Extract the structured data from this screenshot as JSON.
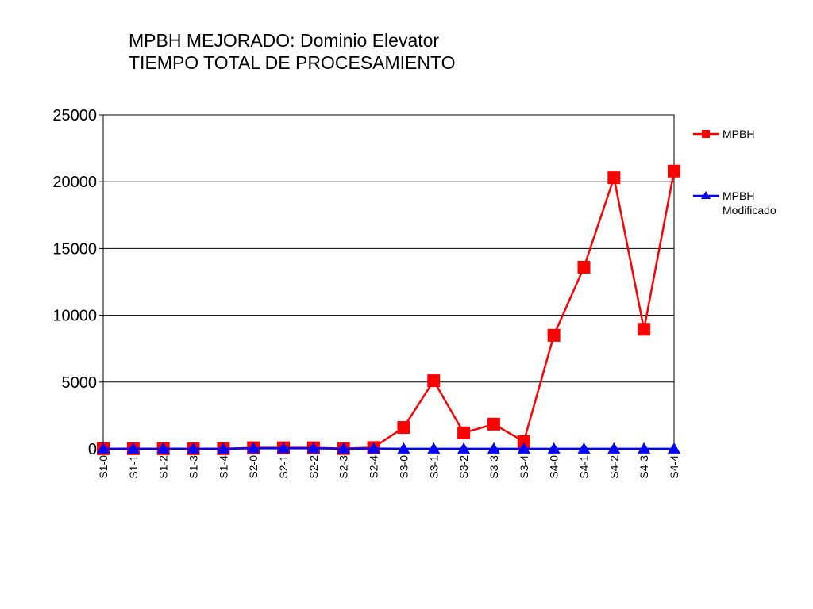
{
  "chart_data": {
    "type": "line",
    "title_lines": [
      "MPBH MEJORADO: Dominio Elevator",
      "TIEMPO TOTAL DE PROCESAMIENTO"
    ],
    "xlabel": "",
    "ylabel": "",
    "ylim": [
      0,
      25000
    ],
    "yticks": [
      0,
      5000,
      10000,
      15000,
      20000,
      25000
    ],
    "grid": true,
    "legend_position": "right",
    "categories": [
      "S1-0",
      "S1-1",
      "S1-2",
      "S1-3",
      "S1-4",
      "S2-0",
      "S2-1",
      "S2-2",
      "S2-3",
      "S2-4",
      "S3-0",
      "S3-1",
      "S3-2",
      "S3-3",
      "S3-4",
      "S4-0",
      "S4-1",
      "S4-2",
      "S4-3",
      "S4-4"
    ],
    "series": [
      {
        "name": "MPBH",
        "legend_lines": [
          "MPBH"
        ],
        "color": "#ff0000",
        "marker": "square",
        "values": [
          10,
          10,
          10,
          10,
          10,
          80,
          80,
          80,
          20,
          100,
          1600,
          5100,
          1200,
          1850,
          550,
          8500,
          13600,
          20300,
          8950,
          20800
        ]
      },
      {
        "name": "MPBH Modificado",
        "legend_lines": [
          "MPBH",
          "Modificado"
        ],
        "color": "#0000ff",
        "marker": "triangle",
        "values": [
          5,
          5,
          5,
          5,
          5,
          40,
          40,
          40,
          10,
          20,
          10,
          10,
          10,
          10,
          10,
          10,
          10,
          10,
          10,
          10
        ]
      }
    ]
  }
}
